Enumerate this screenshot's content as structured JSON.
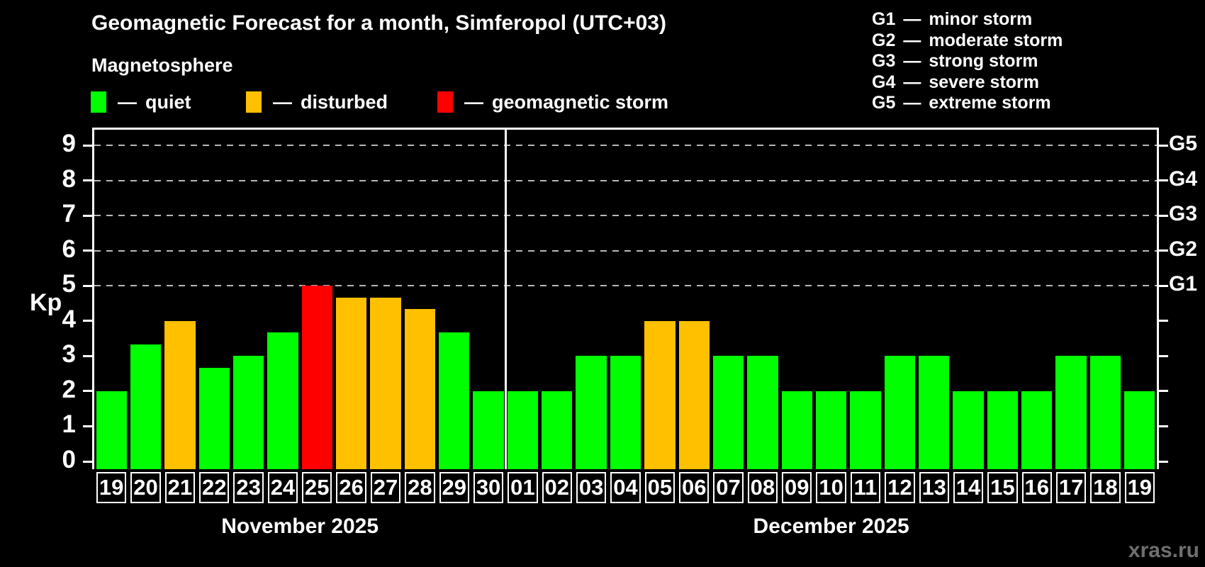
{
  "header": {
    "title": "Geomagnetic Forecast for a month, Simferopol (UTC+03)",
    "subtitle": "Magnetosphere"
  },
  "legend": {
    "dash": "—",
    "items": [
      {
        "label": "quiet",
        "color": "#00ff00"
      },
      {
        "label": "disturbed",
        "color": "#ffc000"
      },
      {
        "label": "geomagnetic storm",
        "color": "#ff0000"
      }
    ]
  },
  "storm_legend": {
    "dash": "—",
    "items": [
      {
        "code": "G1",
        "label": "minor storm"
      },
      {
        "code": "G2",
        "label": "moderate storm"
      },
      {
        "code": "G3",
        "label": "strong storm"
      },
      {
        "code": "G4",
        "label": "severe storm"
      },
      {
        "code": "G5",
        "label": "extreme storm"
      }
    ]
  },
  "chart_data": {
    "type": "bar",
    "ylabel": "Kp",
    "ylim": [
      0,
      9
    ],
    "yticks": [
      0,
      1,
      2,
      3,
      4,
      5,
      6,
      7,
      8,
      9
    ],
    "gridlines_at": [
      5,
      6,
      7,
      8,
      9
    ],
    "grid_style": "dashed",
    "right_axis_labels": [
      {
        "label": "G1",
        "kp": 5
      },
      {
        "label": "G2",
        "kp": 6
      },
      {
        "label": "G3",
        "kp": 7
      },
      {
        "label": "G4",
        "kp": 8
      },
      {
        "label": "G5",
        "kp": 9
      }
    ],
    "status_colors": {
      "quiet": "#00ff00",
      "disturbed": "#ffc000",
      "storm": "#ff0000"
    },
    "months": [
      {
        "label": "November 2025",
        "days": 12
      },
      {
        "label": "December 2025",
        "days": 19
      }
    ],
    "categories": [
      "19",
      "20",
      "21",
      "22",
      "23",
      "24",
      "25",
      "26",
      "27",
      "28",
      "29",
      "30",
      "01",
      "02",
      "03",
      "04",
      "05",
      "06",
      "07",
      "08",
      "09",
      "10",
      "11",
      "12",
      "13",
      "14",
      "15",
      "16",
      "17",
      "18",
      "19"
    ],
    "values": [
      2,
      3.33,
      4,
      2.67,
      3,
      3.67,
      5,
      4.67,
      4.67,
      4.33,
      3.67,
      2,
      2,
      2,
      3,
      3,
      4,
      4,
      3,
      3,
      2,
      2,
      2,
      3,
      3,
      2,
      2,
      2,
      3,
      3,
      2
    ],
    "statuses": [
      "quiet",
      "quiet",
      "disturbed",
      "quiet",
      "quiet",
      "quiet",
      "storm",
      "disturbed",
      "disturbed",
      "disturbed",
      "quiet",
      "quiet",
      "quiet",
      "quiet",
      "quiet",
      "quiet",
      "disturbed",
      "disturbed",
      "quiet",
      "quiet",
      "quiet",
      "quiet",
      "quiet",
      "quiet",
      "quiet",
      "quiet",
      "quiet",
      "quiet",
      "quiet",
      "quiet",
      "quiet"
    ]
  },
  "watermark": "xras.ru"
}
